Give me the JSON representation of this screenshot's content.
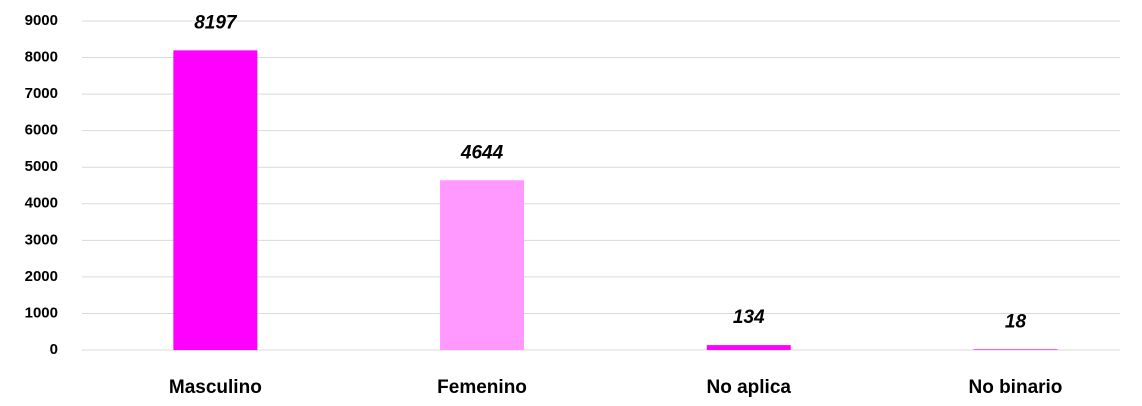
{
  "chart_data": {
    "type": "bar",
    "categories": [
      "Masculino",
      "Femenino",
      "No aplica",
      "No binario"
    ],
    "values": [
      8197,
      4644,
      134,
      18
    ],
    "colors": [
      "#ff00ff",
      "#ff99ff",
      "#ff00ff",
      "#ff00ff"
    ],
    "ylim": [
      0,
      9000
    ],
    "yticks": [
      0,
      1000,
      2000,
      3000,
      4000,
      5000,
      6000,
      7000,
      8000,
      9000
    ],
    "grid": true
  }
}
